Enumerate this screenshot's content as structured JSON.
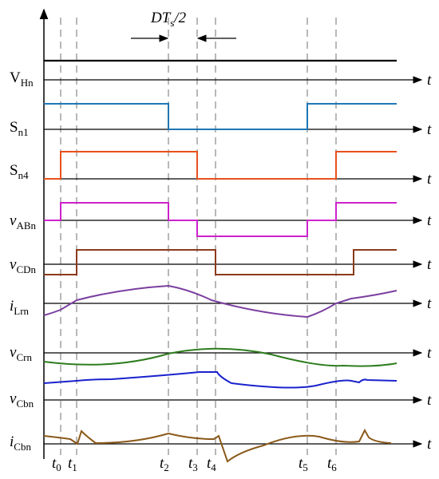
{
  "annotation": {
    "main": "DT",
    "subscript": "s",
    "suffix": "/2"
  },
  "time_axis_symbol": "t",
  "signals": [
    {
      "id": "vhn",
      "main": "V",
      "sub": "Hn",
      "main_italic": false,
      "color": "#000000"
    },
    {
      "id": "sn1",
      "main": "S",
      "sub": "n1",
      "main_italic": false,
      "color": "#1f77b4"
    },
    {
      "id": "sn4",
      "main": "S",
      "sub": "n4",
      "main_italic": false,
      "color": "#e8501c"
    },
    {
      "id": "vabn",
      "main": "v",
      "sub": "ABn",
      "main_italic": true,
      "color": "#cc22cc"
    },
    {
      "id": "vcdn",
      "main": "v",
      "sub": "CDn",
      "main_italic": true,
      "color": "#8b3a1a"
    },
    {
      "id": "ilrn",
      "main": "i",
      "sub": "Lrn",
      "main_italic": true,
      "color": "#7b3fa0"
    },
    {
      "id": "vcrn",
      "main": "v",
      "sub": "Crn",
      "main_italic": true,
      "color": "#2e7d1e"
    },
    {
      "id": "vcbn",
      "main": "v",
      "sub": "Cbn",
      "main_italic": true,
      "color": "#1a22cc"
    },
    {
      "id": "icbn",
      "main": "i",
      "sub": "Cbn",
      "main_italic": true,
      "color": "#8b5a1a"
    }
  ],
  "time_markers": [
    {
      "main": "t",
      "sub": "0"
    },
    {
      "main": "t",
      "sub": "1"
    },
    {
      "main": "t",
      "sub": "2"
    },
    {
      "main": "t",
      "sub": "3"
    },
    {
      "main": "t",
      "sub": "4"
    },
    {
      "main": "t",
      "sub": "5"
    },
    {
      "main": "t",
      "sub": "6"
    }
  ]
}
